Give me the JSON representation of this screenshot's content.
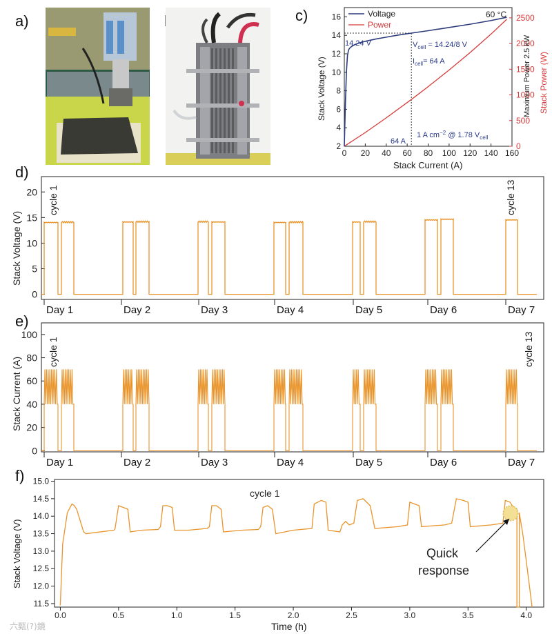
{
  "panels": {
    "a": "a)",
    "b": "b)",
    "c": "c)",
    "d": "d)",
    "e": "e)",
    "f": "f)"
  },
  "watermark": "六甄(?)鏡",
  "colors": {
    "voltage": "#2b3a7a",
    "power": "#d63a3a",
    "orange": "#e8942a",
    "annot": "#2a3a8a",
    "marker": "#f3dd8a"
  },
  "chart_data": [
    {
      "id": "c",
      "type": "line",
      "title": "",
      "xlabel": "Stack Current (A)",
      "ylabel": "Stack Voltage (V)",
      "y2label": "Stack Power (W)",
      "y2label_extra": "Maximum Power 2.5 kW",
      "xlim": [
        0,
        160
      ],
      "ylim": [
        2,
        17
      ],
      "y2lim": [
        0,
        2700
      ],
      "xticks": [
        0,
        20,
        40,
        60,
        80,
        100,
        120,
        140,
        160
      ],
      "yticks": [
        2,
        4,
        6,
        8,
        10,
        12,
        14,
        16
      ],
      "y2ticks": [
        0,
        500,
        1000,
        1500,
        2000,
        2500
      ],
      "legend": [
        "Voltage",
        "Power"
      ],
      "corner_label": "60 °C",
      "series": [
        {
          "name": "Voltage",
          "axis": "left",
          "x": [
            0,
            1,
            2,
            3,
            4,
            5,
            7,
            10,
            15,
            20,
            30,
            40,
            50,
            64,
            80,
            100,
            120,
            140,
            155
          ],
          "y": [
            2.0,
            6.5,
            10.0,
            11.8,
            12.4,
            12.6,
            12.8,
            13.0,
            13.2,
            13.35,
            13.6,
            13.8,
            14.0,
            14.24,
            14.5,
            14.85,
            15.2,
            15.6,
            15.95
          ]
        },
        {
          "name": "Power",
          "axis": "right",
          "x": [
            0,
            20,
            40,
            64,
            80,
            100,
            120,
            140,
            155
          ],
          "y": [
            0,
            267,
            552,
            911,
            1160,
            1485,
            1824,
            2184,
            2472
          ]
        }
      ],
      "annotations": {
        "v_point": "14.24 V",
        "v_formula_pre": "V",
        "v_formula_sub": "cell",
        "v_formula_post": " = 14.24/8 V",
        "i_formula_pre": "I",
        "i_formula_sub": "cell",
        "i_formula_post": "= 64 A",
        "i_point": "64 A",
        "density_pre": "1 A cm",
        "density_sup": "−2",
        "density_mid": " @ 1.78 V",
        "density_sub": "cell",
        "ref_x": 64,
        "ref_y": 14.24
      }
    },
    {
      "id": "d",
      "type": "line",
      "ylabel": "Stack Voltage (V)",
      "ylim": [
        -1,
        23
      ],
      "yticks": [
        0,
        5,
        10,
        15,
        20
      ],
      "days": [
        "Day 1",
        "Day 2",
        "Day 3",
        "Day 4",
        "Day 5",
        "Day 6",
        "Day 7"
      ],
      "cycle_labels": [
        "cycle 1",
        "cycle 13"
      ],
      "on_level": [
        14.1,
        14.2,
        14.2,
        14.1,
        14.2,
        14.6,
        14.6
      ],
      "off_level": 0
    },
    {
      "id": "e",
      "type": "line",
      "ylabel": "Stack Current (A)",
      "ylim": [
        -1,
        110
      ],
      "yticks": [
        0,
        20,
        40,
        60,
        80,
        100
      ],
      "days": [
        "Day 1",
        "Day 2",
        "Day 3",
        "Day 4",
        "Day 5",
        "Day 6",
        "Day 7"
      ],
      "cycle_labels": [
        "cycle 1",
        "cycle 13"
      ],
      "high_level": 70,
      "low_level": 40,
      "off_level": 0
    },
    {
      "id": "f",
      "type": "line",
      "xlabel": "Time (h)",
      "ylabel": "Stack Voltage (V)",
      "xlim": [
        -0.05,
        4.15
      ],
      "ylim": [
        11.4,
        15.05
      ],
      "xticks": [
        0.0,
        0.5,
        1.0,
        1.5,
        2.0,
        2.5,
        3.0,
        3.5,
        4.0
      ],
      "xtick_labels": [
        "0.0",
        "0.5",
        "1.0",
        "1.5",
        "2.0",
        "2.5",
        "3.0",
        "3.5",
        "4.0"
      ],
      "yticks": [
        11.5,
        12.0,
        12.5,
        13.0,
        13.5,
        14.0,
        14.5,
        15.0
      ],
      "ytick_labels": [
        "11.5",
        "12.0",
        "12.5",
        "13.0",
        "13.5",
        "14.0",
        "14.5",
        "15.0"
      ],
      "title_in_plot": "cycle 1",
      "annotation": "Quick\nresponse",
      "annotation_line1": "Quick",
      "annotation_line2": "response",
      "series": [
        {
          "name": "Stack Voltage",
          "x": [
            0.0,
            0.02,
            0.06,
            0.1,
            0.12,
            0.14,
            0.2,
            0.22,
            0.46,
            0.47,
            0.5,
            0.54,
            0.58,
            0.6,
            0.7,
            0.84,
            0.86,
            0.88,
            0.92,
            0.96,
            0.98,
            1.1,
            1.26,
            1.28,
            1.3,
            1.34,
            1.38,
            1.4,
            1.56,
            1.7,
            1.72,
            1.74,
            1.78,
            1.82,
            1.85,
            2.0,
            2.16,
            2.18,
            2.24,
            2.28,
            2.3,
            2.4,
            2.42,
            2.45,
            2.48,
            2.52,
            2.55,
            2.6,
            2.66,
            2.7,
            2.9,
            2.98,
            3.0,
            3.04,
            3.08,
            3.1,
            3.3,
            3.36,
            3.4,
            3.46,
            3.5,
            3.52,
            3.7,
            3.8,
            3.82,
            3.86,
            3.88,
            3.9
          ],
          "y": [
            11.45,
            13.2,
            14.1,
            14.35,
            14.3,
            14.2,
            13.55,
            13.5,
            13.6,
            13.65,
            14.3,
            14.25,
            14.2,
            13.55,
            13.6,
            13.62,
            13.7,
            14.3,
            14.3,
            14.25,
            13.6,
            13.6,
            13.65,
            13.7,
            14.3,
            14.3,
            14.2,
            13.55,
            13.6,
            13.62,
            13.7,
            14.25,
            14.3,
            14.2,
            13.5,
            13.6,
            13.65,
            14.35,
            14.45,
            14.4,
            13.6,
            13.55,
            13.75,
            13.85,
            13.75,
            13.8,
            14.45,
            14.5,
            14.3,
            13.65,
            13.7,
            13.75,
            14.4,
            14.35,
            14.3,
            13.7,
            13.75,
            13.8,
            14.5,
            14.45,
            14.4,
            13.7,
            13.75,
            13.8,
            14.45,
            14.4,
            14.3,
            14.25
          ]
        }
      ]
    }
  ]
}
